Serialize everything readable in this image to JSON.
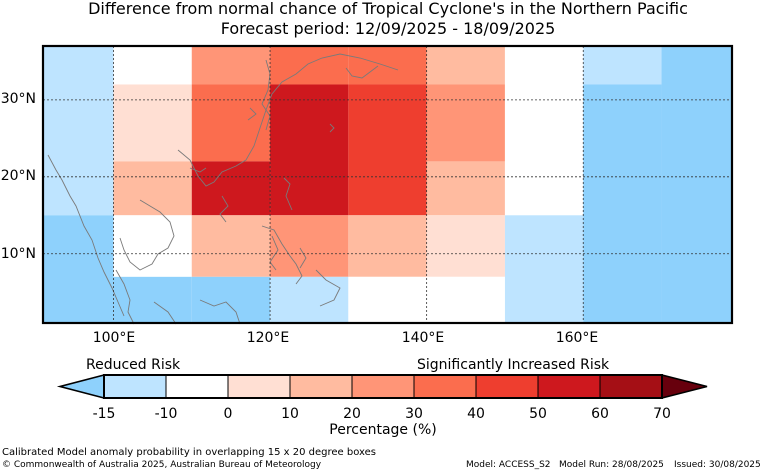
{
  "title": {
    "line1": "Difference from normal chance of Tropical Cyclone's in the Northern Pacific",
    "line2": "Forecast period: 12/09/2025 - 18/09/2025"
  },
  "map": {
    "lat_labels": [
      "30°N",
      "20°N",
      "10°N"
    ],
    "lon_labels": [
      "100°E",
      "120°E",
      "140°E",
      "160°E"
    ],
    "lat_lines": [
      30,
      20,
      10
    ],
    "lon_lines": [
      100,
      120,
      140,
      160
    ],
    "extent": {
      "lon_min": 91,
      "lon_max": 179,
      "lat_min": 1,
      "lat_max": 37
    },
    "cell_colors": {
      "r1": "#bee4ff",
      "w": "#ffffff",
      "p0": "#ffdfd3",
      "p1": "#ffbba0",
      "p2": "#ff9577",
      "p3": "#fb6d4e",
      "p4": "#ee3e2f",
      "p5": "#ce181e",
      "sky": "#8ed1fc"
    },
    "cells": [
      {
        "lon": [
          91,
          100
        ],
        "lat": [
          15,
          37
        ],
        "color": "r1"
      },
      {
        "lon": [
          91,
          100
        ],
        "lat": [
          1,
          15
        ],
        "color": "sky"
      },
      {
        "lon": [
          100,
          110
        ],
        "lat": [
          32,
          37
        ],
        "color": "w"
      },
      {
        "lon": [
          100,
          110
        ],
        "lat": [
          22,
          32
        ],
        "color": "p0"
      },
      {
        "lon": [
          100,
          110
        ],
        "lat": [
          15,
          22
        ],
        "color": "p1"
      },
      {
        "lon": [
          100,
          110
        ],
        "lat": [
          7,
          15
        ],
        "color": "w"
      },
      {
        "lon": [
          100,
          110
        ],
        "lat": [
          1,
          7
        ],
        "color": "sky"
      },
      {
        "lon": [
          110,
          120
        ],
        "lat": [
          32,
          37
        ],
        "color": "p2"
      },
      {
        "lon": [
          110,
          120
        ],
        "lat": [
          22,
          32
        ],
        "color": "p3"
      },
      {
        "lon": [
          110,
          120
        ],
        "lat": [
          15,
          22
        ],
        "color": "p5"
      },
      {
        "lon": [
          110,
          120
        ],
        "lat": [
          7,
          15
        ],
        "color": "p1"
      },
      {
        "lon": [
          110,
          120
        ],
        "lat": [
          1,
          7
        ],
        "color": "sky"
      },
      {
        "lon": [
          120,
          130
        ],
        "lat": [
          32,
          37
        ],
        "color": "p3"
      },
      {
        "lon": [
          120,
          130
        ],
        "lat": [
          15,
          32
        ],
        "color": "p5"
      },
      {
        "lon": [
          120,
          130
        ],
        "lat": [
          7,
          15
        ],
        "color": "p2"
      },
      {
        "lon": [
          120,
          130
        ],
        "lat": [
          1,
          7
        ],
        "color": "r1"
      },
      {
        "lon": [
          130,
          140
        ],
        "lat": [
          32,
          37
        ],
        "color": "p3"
      },
      {
        "lon": [
          130,
          140
        ],
        "lat": [
          15,
          32
        ],
        "color": "p4"
      },
      {
        "lon": [
          130,
          140
        ],
        "lat": [
          7,
          15
        ],
        "color": "p1"
      },
      {
        "lon": [
          130,
          140
        ],
        "lat": [
          1,
          7
        ],
        "color": "w"
      },
      {
        "lon": [
          140,
          150
        ],
        "lat": [
          32,
          37
        ],
        "color": "p1"
      },
      {
        "lon": [
          140,
          150
        ],
        "lat": [
          22,
          32
        ],
        "color": "p2"
      },
      {
        "lon": [
          140,
          150
        ],
        "lat": [
          15,
          22
        ],
        "color": "p1"
      },
      {
        "lon": [
          140,
          150
        ],
        "lat": [
          7,
          15
        ],
        "color": "p0"
      },
      {
        "lon": [
          140,
          150
        ],
        "lat": [
          1,
          7
        ],
        "color": "w"
      },
      {
        "lon": [
          150,
          160
        ],
        "lat": [
          15,
          37
        ],
        "color": "w"
      },
      {
        "lon": [
          150,
          160
        ],
        "lat": [
          1,
          15
        ],
        "color": "r1"
      },
      {
        "lon": [
          160,
          170
        ],
        "lat": [
          32,
          37
        ],
        "color": "r1"
      },
      {
        "lon": [
          160,
          170
        ],
        "lat": [
          1,
          32
        ],
        "color": "sky"
      },
      {
        "lon": [
          170,
          179
        ],
        "lat": [
          1,
          37
        ],
        "color": "sky"
      }
    ]
  },
  "legend": {
    "reduced_label": "Reduced Risk",
    "increased_label": "Significantly Increased Risk",
    "ticks": [
      "-15",
      "-10",
      "0",
      "10",
      "20",
      "30",
      "40",
      "50",
      "60",
      "70"
    ],
    "colors": [
      "#bee4ff",
      "#ffffff",
      "#ffdfd3",
      "#ffbba0",
      "#ff9577",
      "#fb6d4e",
      "#ee3e2f",
      "#ce181e",
      "#a50f15"
    ],
    "under_color": "#8ed1fc",
    "over_color": "#67000d",
    "xlabel": "Percentage (%)"
  },
  "footer": {
    "caption": "Calibrated Model anomaly probability in overlapping 15 x 20 degree boxes",
    "copyright": "© Commonwealth of Australia 2025, Australian Bureau of Meteorology",
    "model": "Model: ACCESS_S2",
    "model_run": "Model Run: 28/08/2025",
    "issued": "Issued: 30/08/2025"
  }
}
